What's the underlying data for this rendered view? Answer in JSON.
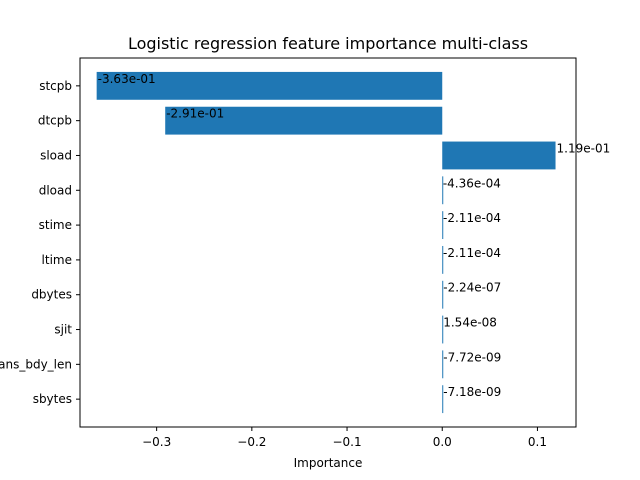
{
  "chart_data": {
    "type": "bar",
    "orientation": "horizontal",
    "title": "Logistic regression feature importance multi-class",
    "xlabel": "Importance",
    "ylabel": "",
    "xlim": [
      -0.3805,
      0.1405
    ],
    "x_ticks": [
      -0.3,
      -0.2,
      -0.1,
      0.0,
      0.1
    ],
    "x_tick_labels": [
      "−0.3",
      "−0.2",
      "−0.1",
      "0.0",
      "0.1"
    ],
    "categories": [
      "stcpb",
      "dtcpb",
      "sload",
      "dload",
      "stime",
      "ltime",
      "dbytes",
      "sjit",
      "trans_bdy_len",
      "sbytes"
    ],
    "values": [
      -0.363,
      -0.291,
      0.119,
      -0.000436,
      -0.000211,
      -0.000211,
      -2.24e-07,
      1.54e-08,
      -7.72e-09,
      -7.18e-09
    ],
    "value_labels": [
      "-3.63e-01",
      "-2.91e-01",
      "1.19e-01",
      "-4.36e-04",
      "-2.11e-04",
      "-2.11e-04",
      "-2.24e-07",
      "1.54e-08",
      "-7.72e-09",
      "-7.18e-09"
    ],
    "bar_color": "#1f77b4",
    "grid": false,
    "legend": "none"
  }
}
